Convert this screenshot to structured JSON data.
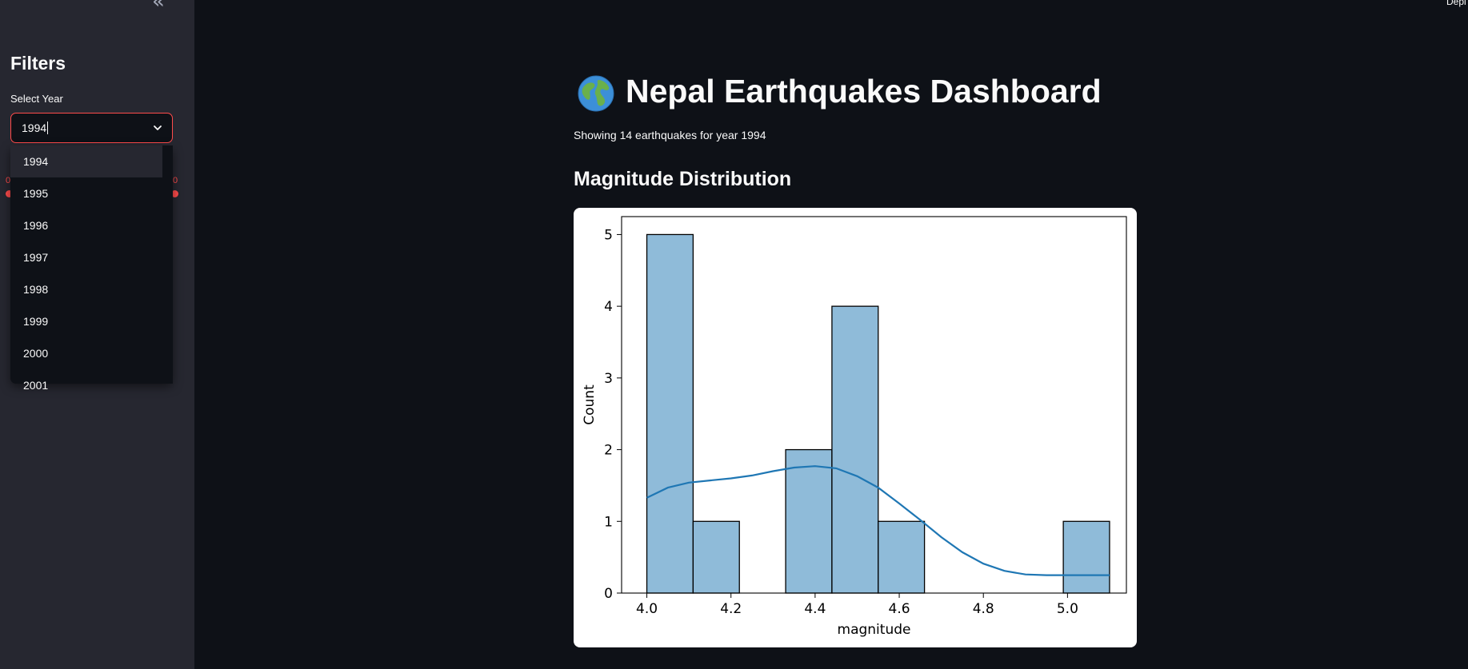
{
  "sidebar": {
    "collapse_icon": "«",
    "title": "Filters",
    "year_select": {
      "label": "Select Year",
      "value": "1994",
      "options": [
        "1994",
        "1995",
        "1996",
        "1997",
        "1998",
        "1999",
        "2000",
        "2001"
      ],
      "highlighted": "1994"
    },
    "slider_hint_left": "0",
    "slider_hint_right": "0"
  },
  "header": {
    "deploy_label": "Depl"
  },
  "main": {
    "title_emoji": "globe-icon",
    "title": "Nepal Earthquakes Dashboard",
    "subtitle": "Showing 14 earthquakes for year 1994",
    "section_title": "Magnitude Distribution"
  },
  "colors": {
    "background": "#0e1117",
    "sidebar": "#262730",
    "accent": "#ff4b4b",
    "bar_fill": "#8fbbd9",
    "kde_line": "#1f77b4"
  },
  "chart_data": {
    "type": "bar",
    "subtype": "histogram-with-kde",
    "title": "",
    "xlabel": "magnitude",
    "ylabel": "Count",
    "xlim": [
      3.94,
      5.14
    ],
    "ylim": [
      0,
      5.25
    ],
    "xticks": [
      4.0,
      4.2,
      4.4,
      4.6,
      4.8,
      5.0
    ],
    "xtick_labels": [
      "4.0",
      "4.2",
      "4.4",
      "4.6",
      "4.8",
      "5.0"
    ],
    "yticks": [
      0,
      1,
      2,
      3,
      4,
      5
    ],
    "ytick_labels": [
      "0",
      "1",
      "2",
      "3",
      "4",
      "5"
    ],
    "bins": [
      {
        "x0": 4.0,
        "x1": 4.11,
        "count": 5
      },
      {
        "x0": 4.11,
        "x1": 4.22,
        "count": 1
      },
      {
        "x0": 4.22,
        "x1": 4.33,
        "count": 0
      },
      {
        "x0": 4.33,
        "x1": 4.44,
        "count": 2
      },
      {
        "x0": 4.44,
        "x1": 4.55,
        "count": 4
      },
      {
        "x0": 4.55,
        "x1": 4.66,
        "count": 1
      },
      {
        "x0": 4.66,
        "x1": 4.77,
        "count": 0
      },
      {
        "x0": 4.77,
        "x1": 4.88,
        "count": 0
      },
      {
        "x0": 4.88,
        "x1": 4.99,
        "count": 0
      },
      {
        "x0": 4.99,
        "x1": 5.1,
        "count": 1
      }
    ],
    "kde": {
      "x": [
        4.0,
        4.05,
        4.1,
        4.15,
        4.2,
        4.25,
        4.3,
        4.35,
        4.4,
        4.45,
        4.5,
        4.55,
        4.6,
        4.65,
        4.7,
        4.75,
        4.8,
        4.85,
        4.9,
        4.95,
        5.0,
        5.05,
        5.1
      ],
      "y": [
        1.33,
        1.47,
        1.54,
        1.57,
        1.6,
        1.64,
        1.7,
        1.75,
        1.77,
        1.74,
        1.63,
        1.47,
        1.25,
        1.02,
        0.78,
        0.57,
        0.41,
        0.31,
        0.26,
        0.25,
        0.25,
        0.25,
        0.25
      ]
    },
    "grid": false,
    "legend": "none"
  }
}
